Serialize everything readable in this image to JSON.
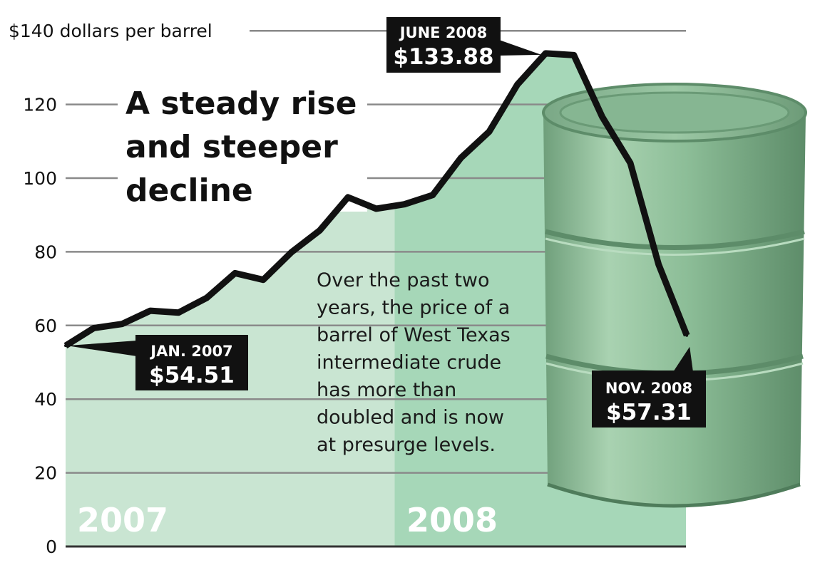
{
  "title_lines": [
    "A steady rise",
    "and steeper",
    "decline"
  ],
  "description_lines": [
    "Over the past two",
    "years, the price of a",
    "barrel of West Texas",
    "intermediate crude",
    "has more than",
    "doubled and is now",
    "at presurge levels."
  ],
  "colors": {
    "area_2007": "#c9e5d2",
    "area_2008": "#a6d7b8",
    "line": "#111111",
    "barrel": "#8fbf9a",
    "callout_bg": "#111111"
  },
  "chart_data": {
    "type": "area",
    "title": "A steady rise and steeper decline",
    "ylim": [
      0,
      140
    ],
    "yticks": [
      {
        "value": 0,
        "label": "0"
      },
      {
        "value": 20,
        "label": "20"
      },
      {
        "value": 40,
        "label": "40"
      },
      {
        "value": 60,
        "label": "60"
      },
      {
        "value": 80,
        "label": "80"
      },
      {
        "value": 100,
        "label": "100"
      },
      {
        "value": 120,
        "label": "120"
      },
      {
        "value": 140,
        "label": "$140 dollars per barrel"
      }
    ],
    "grid": true,
    "periods": [
      {
        "label": "2007",
        "start": "2007-01",
        "end": "2007-12"
      },
      {
        "label": "2008",
        "start": "2008-01",
        "end": "2008-11"
      }
    ],
    "x": [
      "2007-01",
      "2007-02",
      "2007-03",
      "2007-04",
      "2007-05",
      "2007-06",
      "2007-07",
      "2007-08",
      "2007-09",
      "2007-10",
      "2007-11",
      "2007-12",
      "2008-01",
      "2008-02",
      "2008-03",
      "2008-04",
      "2008-05",
      "2008-06",
      "2008-07",
      "2008-08",
      "2008-09",
      "2008-10",
      "2008-11"
    ],
    "series": [
      {
        "values": [
          54.51,
          59.3,
          60.4,
          64.0,
          63.5,
          67.5,
          74.2,
          72.4,
          79.9,
          85.8,
          94.8,
          91.7,
          92.9,
          95.4,
          105.5,
          112.6,
          125.4,
          133.88,
          133.4,
          116.7,
          104.1,
          76.6,
          57.31
        ]
      }
    ],
    "annotations": [
      {
        "x": "2007-01",
        "date_label": "JAN. 2007",
        "price_label": "$54.51"
      },
      {
        "x": "2008-06",
        "date_label": "JUNE 2008",
        "price_label": "$133.88"
      },
      {
        "x": "2008-11",
        "date_label": "NOV. 2008",
        "price_label": "$57.31"
      }
    ]
  }
}
